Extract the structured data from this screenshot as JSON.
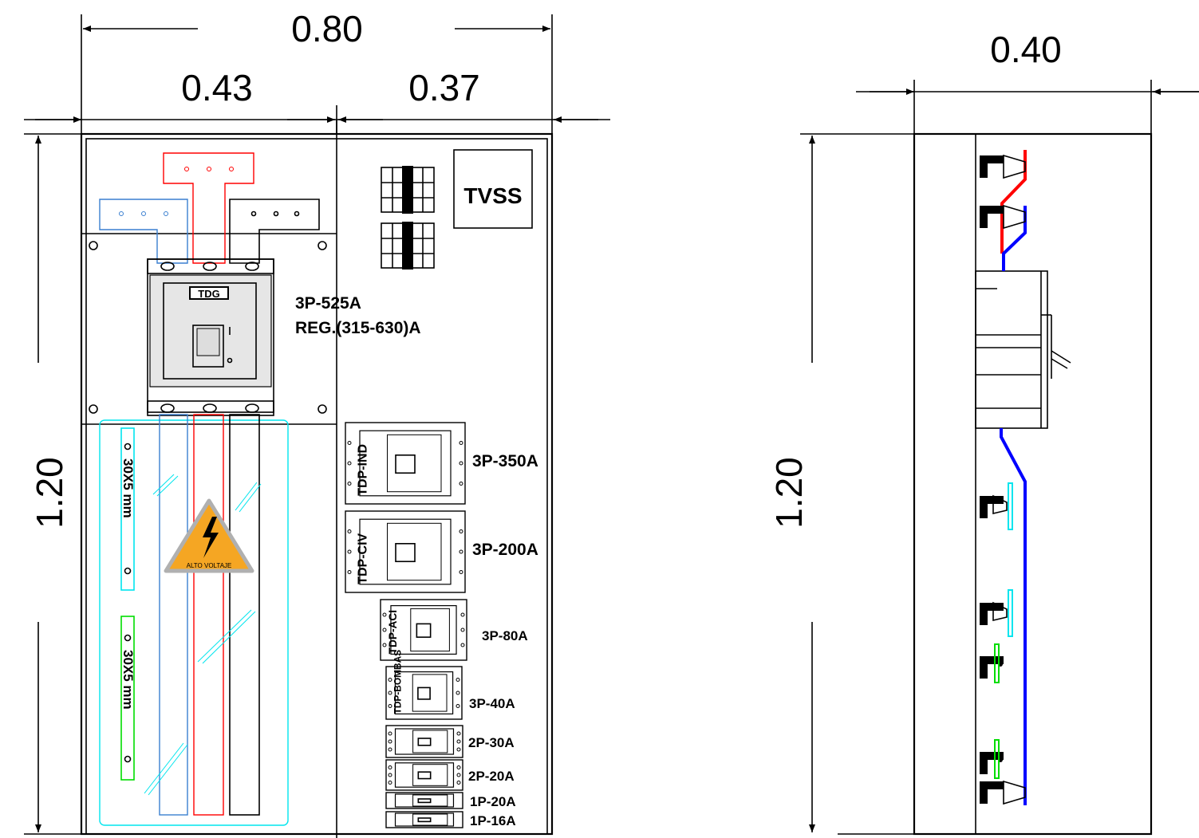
{
  "dimensions": {
    "total_width": "0.80",
    "left_width": "0.43",
    "right_width": "0.37",
    "height_front": "1.20",
    "depth": "0.40",
    "height_side": "1.20"
  },
  "labels": {
    "tvss": "TVSS",
    "main_breaker_tag": "TDG",
    "main_breaker_rating": "3P-525A",
    "main_breaker_reg": "REG.(315-630)A",
    "bus_bar_1": "30X5 mm",
    "bus_bar_2": "30X5 mm",
    "warning_sign": "ALTO VOLTAJE"
  },
  "breakers": [
    {
      "tag": "TDP-IND",
      "rating": "3P-350A"
    },
    {
      "tag": "TDP-CIV",
      "rating": "3P-200A"
    },
    {
      "tag": "TDP-ACI",
      "rating": "3P-80A"
    },
    {
      "tag": "TDP-BOMBAS",
      "rating": "3P-40A"
    },
    {
      "tag": "",
      "rating": "2P-30A"
    },
    {
      "tag": "",
      "rating": "2P-20A"
    },
    {
      "tag": "",
      "rating": "1P-20A"
    },
    {
      "tag": "",
      "rating": "1P-16A"
    }
  ],
  "colors": {
    "phase_red": "#ff0000",
    "phase_blue": "#0000ff",
    "bus_cyan": "#00e5ee",
    "bus_green": "#00dd00",
    "warning_fill": "#f5a623"
  }
}
